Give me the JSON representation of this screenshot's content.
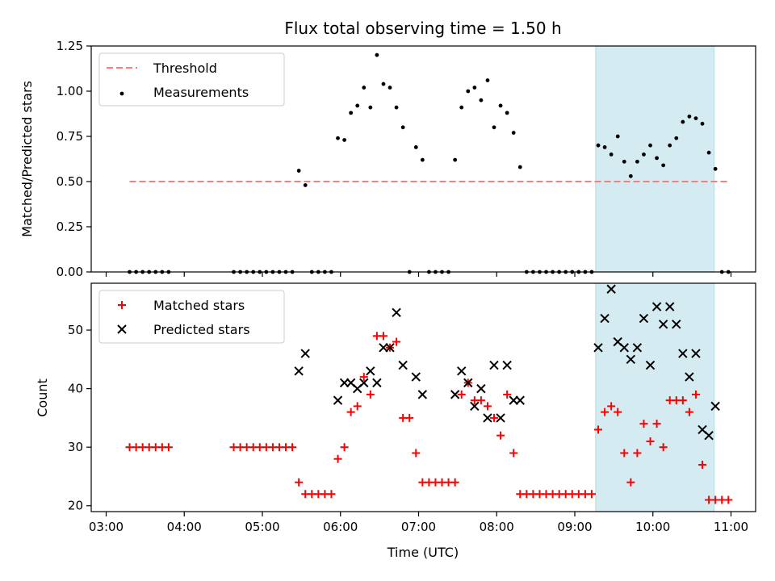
{
  "chart_data": [
    {
      "type": "scatter",
      "title": "Flux total observing time = 1.50 h",
      "xlabel": "",
      "ylabel": "Matched/Predicted stars",
      "xlim": [
        "03:00",
        "11:00"
      ],
      "ylim": [
        0,
        1.25
      ],
      "yticks": [
        "0.00",
        "0.25",
        "0.50",
        "0.75",
        "1.00",
        "1.25"
      ],
      "grid": false,
      "legend": "top-left",
      "highlight_span": [
        "09:16",
        "10:47"
      ],
      "highlight_color": "#d3ebf1",
      "threshold": {
        "name": "Threshold",
        "y": 0.5,
        "x_range": [
          "03:18",
          "10:58"
        ],
        "color": "#ff7b7b"
      },
      "series": [
        {
          "name": "Measurements",
          "color": "#000000",
          "points": [
            [
              "03:18",
              0
            ],
            [
              "03:23",
              0
            ],
            [
              "03:28",
              0
            ],
            [
              "03:33",
              0
            ],
            [
              "03:38",
              0
            ],
            [
              "03:43",
              0
            ],
            [
              "03:48",
              0
            ],
            [
              "04:38",
              0
            ],
            [
              "04:43",
              0
            ],
            [
              "04:48",
              0
            ],
            [
              "04:53",
              0
            ],
            [
              "04:58",
              0
            ],
            [
              "05:03",
              0
            ],
            [
              "05:08",
              0
            ],
            [
              "05:13",
              0
            ],
            [
              "05:18",
              0
            ],
            [
              "05:23",
              0
            ],
            [
              "05:28",
              0.56
            ],
            [
              "05:33",
              0.48
            ],
            [
              "05:38",
              0
            ],
            [
              "05:43",
              0
            ],
            [
              "05:48",
              0
            ],
            [
              "05:53",
              0
            ],
            [
              "05:58",
              0.74
            ],
            [
              "06:03",
              0.73
            ],
            [
              "06:08",
              0.88
            ],
            [
              "06:13",
              0.92
            ],
            [
              "06:18",
              1.02
            ],
            [
              "06:23",
              0.91
            ],
            [
              "06:28",
              1.2
            ],
            [
              "06:33",
              1.04
            ],
            [
              "06:38",
              1.02
            ],
            [
              "06:43",
              0.91
            ],
            [
              "06:48",
              0.8
            ],
            [
              "06:53",
              0
            ],
            [
              "06:58",
              0.69
            ],
            [
              "07:03",
              0.62
            ],
            [
              "07:08",
              0
            ],
            [
              "07:13",
              0
            ],
            [
              "07:18",
              0
            ],
            [
              "07:23",
              0
            ],
            [
              "07:28",
              0.62
            ],
            [
              "07:33",
              0.91
            ],
            [
              "07:38",
              1.0
            ],
            [
              "07:43",
              1.02
            ],
            [
              "07:48",
              0.95
            ],
            [
              "07:53",
              1.06
            ],
            [
              "07:58",
              0.8
            ],
            [
              "08:03",
              0.92
            ],
            [
              "08:08",
              0.88
            ],
            [
              "08:13",
              0.77
            ],
            [
              "08:18",
              0.58
            ],
            [
              "08:23",
              0
            ],
            [
              "08:28",
              0
            ],
            [
              "08:33",
              0
            ],
            [
              "08:38",
              0
            ],
            [
              "08:43",
              0
            ],
            [
              "08:48",
              0
            ],
            [
              "08:53",
              0
            ],
            [
              "08:58",
              0
            ],
            [
              "09:03",
              0
            ],
            [
              "09:08",
              0
            ],
            [
              "09:13",
              0
            ],
            [
              "09:18",
              0.7
            ],
            [
              "09:23",
              0.69
            ],
            [
              "09:28",
              0.65
            ],
            [
              "09:33",
              0.75
            ],
            [
              "09:38",
              0.61
            ],
            [
              "09:43",
              0.53
            ],
            [
              "09:48",
              0.61
            ],
            [
              "09:53",
              0.65
            ],
            [
              "09:58",
              0.7
            ],
            [
              "10:03",
              0.63
            ],
            [
              "10:08",
              0.59
            ],
            [
              "10:13",
              0.7
            ],
            [
              "10:18",
              0.74
            ],
            [
              "10:23",
              0.83
            ],
            [
              "10:28",
              0.86
            ],
            [
              "10:33",
              0.85
            ],
            [
              "10:38",
              0.82
            ],
            [
              "10:43",
              0.66
            ],
            [
              "10:48",
              0.57
            ],
            [
              "10:53",
              0
            ],
            [
              "10:58",
              0
            ]
          ]
        }
      ]
    },
    {
      "type": "scatter",
      "title": "",
      "xlabel": "Time (UTC)",
      "ylabel": "Count",
      "xlim": [
        "03:00",
        "11:00"
      ],
      "ylim": [
        19,
        58
      ],
      "yticks": [
        "20",
        "30",
        "40",
        "50"
      ],
      "xticks": [
        "03:00",
        "04:00",
        "05:00",
        "06:00",
        "07:00",
        "08:00",
        "09:00",
        "10:00",
        "11:00"
      ],
      "grid": false,
      "legend": "top-left",
      "highlight_span": [
        "09:16",
        "10:47"
      ],
      "highlight_color": "#d3ebf1",
      "series": [
        {
          "name": "Matched stars",
          "marker": "+",
          "color": "#ff0000",
          "points": [
            [
              "03:18",
              30
            ],
            [
              "03:23",
              30
            ],
            [
              "03:28",
              30
            ],
            [
              "03:33",
              30
            ],
            [
              "03:38",
              30
            ],
            [
              "03:43",
              30
            ],
            [
              "03:48",
              30
            ],
            [
              "04:38",
              30
            ],
            [
              "04:43",
              30
            ],
            [
              "04:48",
              30
            ],
            [
              "04:53",
              30
            ],
            [
              "04:58",
              30
            ],
            [
              "05:03",
              30
            ],
            [
              "05:08",
              30
            ],
            [
              "05:13",
              30
            ],
            [
              "05:18",
              30
            ],
            [
              "05:23",
              30
            ],
            [
              "05:28",
              24
            ],
            [
              "05:33",
              22
            ],
            [
              "05:38",
              22
            ],
            [
              "05:43",
              22
            ],
            [
              "05:48",
              22
            ],
            [
              "05:53",
              22
            ],
            [
              "05:58",
              28
            ],
            [
              "06:03",
              30
            ],
            [
              "06:08",
              36
            ],
            [
              "06:13",
              37
            ],
            [
              "06:18",
              42
            ],
            [
              "06:23",
              39
            ],
            [
              "06:28",
              49
            ],
            [
              "06:33",
              49
            ],
            [
              "06:38",
              47
            ],
            [
              "06:43",
              48
            ],
            [
              "06:48",
              35
            ],
            [
              "06:53",
              35
            ],
            [
              "06:58",
              29
            ],
            [
              "07:03",
              24
            ],
            [
              "07:08",
              24
            ],
            [
              "07:13",
              24
            ],
            [
              "07:18",
              24
            ],
            [
              "07:23",
              24
            ],
            [
              "07:28",
              24
            ],
            [
              "07:33",
              39
            ],
            [
              "07:38",
              41
            ],
            [
              "07:43",
              38
            ],
            [
              "07:48",
              38
            ],
            [
              "07:53",
              37
            ],
            [
              "07:58",
              35
            ],
            [
              "08:03",
              32
            ],
            [
              "08:08",
              39
            ],
            [
              "08:13",
              29
            ],
            [
              "08:18",
              22
            ],
            [
              "08:23",
              22
            ],
            [
              "08:28",
              22
            ],
            [
              "08:33",
              22
            ],
            [
              "08:38",
              22
            ],
            [
              "08:43",
              22
            ],
            [
              "08:48",
              22
            ],
            [
              "08:53",
              22
            ],
            [
              "08:58",
              22
            ],
            [
              "09:03",
              22
            ],
            [
              "09:08",
              22
            ],
            [
              "09:13",
              22
            ],
            [
              "09:18",
              33
            ],
            [
              "09:23",
              36
            ],
            [
              "09:28",
              37
            ],
            [
              "09:33",
              36
            ],
            [
              "09:38",
              29
            ],
            [
              "09:43",
              24
            ],
            [
              "09:48",
              29
            ],
            [
              "09:53",
              34
            ],
            [
              "09:58",
              31
            ],
            [
              "10:03",
              34
            ],
            [
              "10:08",
              30
            ],
            [
              "10:13",
              38
            ],
            [
              "10:18",
              38
            ],
            [
              "10:23",
              38
            ],
            [
              "10:28",
              36
            ],
            [
              "10:33",
              39
            ],
            [
              "10:38",
              27
            ],
            [
              "10:43",
              21
            ],
            [
              "10:48",
              21
            ],
            [
              "10:53",
              21
            ],
            [
              "10:58",
              21
            ]
          ]
        },
        {
          "name": "Predicted stars",
          "marker": "x",
          "color": "#000000",
          "points": [
            [
              "05:28",
              43
            ],
            [
              "05:33",
              46
            ],
            [
              "05:58",
              38
            ],
            [
              "06:03",
              41
            ],
            [
              "06:08",
              41
            ],
            [
              "06:13",
              40
            ],
            [
              "06:18",
              41
            ],
            [
              "06:23",
              43
            ],
            [
              "06:28",
              41
            ],
            [
              "06:33",
              47
            ],
            [
              "06:38",
              47
            ],
            [
              "06:43",
              53
            ],
            [
              "06:48",
              44
            ],
            [
              "06:58",
              42
            ],
            [
              "07:03",
              39
            ],
            [
              "07:28",
              39
            ],
            [
              "07:33",
              43
            ],
            [
              "07:38",
              41
            ],
            [
              "07:43",
              37
            ],
            [
              "07:48",
              40
            ],
            [
              "07:53",
              35
            ],
            [
              "07:58",
              44
            ],
            [
              "08:03",
              35
            ],
            [
              "08:08",
              44
            ],
            [
              "08:13",
              38
            ],
            [
              "08:18",
              38
            ],
            [
              "09:18",
              47
            ],
            [
              "09:23",
              52
            ],
            [
              "09:28",
              57
            ],
            [
              "09:33",
              48
            ],
            [
              "09:38",
              47
            ],
            [
              "09:43",
              45
            ],
            [
              "09:48",
              47
            ],
            [
              "09:53",
              52
            ],
            [
              "09:58",
              44
            ],
            [
              "10:03",
              54
            ],
            [
              "10:08",
              51
            ],
            [
              "10:13",
              54
            ],
            [
              "10:18",
              51
            ],
            [
              "10:23",
              46
            ],
            [
              "10:28",
              42
            ],
            [
              "10:33",
              46
            ],
            [
              "10:38",
              33
            ],
            [
              "10:43",
              32
            ],
            [
              "10:48",
              37
            ]
          ]
        }
      ]
    }
  ]
}
